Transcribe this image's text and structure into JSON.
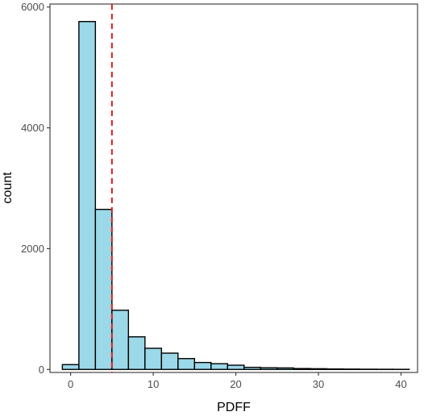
{
  "chart_data": {
    "type": "bar",
    "subtype": "histogram",
    "xlabel": "PDFF",
    "ylabel": "count",
    "xlim": [
      -2.5,
      42
    ],
    "ylim": [
      -50,
      6050
    ],
    "x_ticks": [
      0,
      10,
      20,
      30,
      40
    ],
    "y_ticks": [
      0,
      2000,
      4000,
      6000
    ],
    "x_tick_labels": [
      "0",
      "10",
      "20",
      "30",
      "40"
    ],
    "y_tick_labels": [
      "0",
      "2000",
      "4000",
      "6000"
    ],
    "bin_width": 2,
    "bins": [
      {
        "x0": -1,
        "x1": 1,
        "count": 80
      },
      {
        "x0": 1,
        "x1": 3,
        "count": 5760
      },
      {
        "x0": 3,
        "x1": 5,
        "count": 2650
      },
      {
        "x0": 5,
        "x1": 7,
        "count": 980
      },
      {
        "x0": 7,
        "x1": 9,
        "count": 540
      },
      {
        "x0": 9,
        "x1": 11,
        "count": 350
      },
      {
        "x0": 11,
        "x1": 13,
        "count": 270
      },
      {
        "x0": 13,
        "x1": 15,
        "count": 180
      },
      {
        "x0": 15,
        "x1": 17,
        "count": 115
      },
      {
        "x0": 17,
        "x1": 19,
        "count": 95
      },
      {
        "x0": 19,
        "x1": 21,
        "count": 70
      },
      {
        "x0": 21,
        "x1": 23,
        "count": 35
      },
      {
        "x0": 23,
        "x1": 25,
        "count": 28
      },
      {
        "x0": 25,
        "x1": 27,
        "count": 25
      },
      {
        "x0": 27,
        "x1": 29,
        "count": 15
      },
      {
        "x0": 29,
        "x1": 31,
        "count": 12
      },
      {
        "x0": 31,
        "x1": 33,
        "count": 8
      },
      {
        "x0": 33,
        "x1": 35,
        "count": 6
      },
      {
        "x0": 35,
        "x1": 37,
        "count": 4
      },
      {
        "x0": 37,
        "x1": 39,
        "count": 3
      },
      {
        "x0": 39,
        "x1": 41,
        "count": 2
      }
    ],
    "reference_line": {
      "x": 5,
      "orientation": "vertical",
      "style": "dashed",
      "color": "#e41a1c"
    },
    "colors": {
      "bar_fill": "#9bd8e8",
      "bar_stroke": "#000000",
      "panel_border": "#333333",
      "tick": "#333333"
    },
    "grid": false,
    "legend": "none"
  }
}
